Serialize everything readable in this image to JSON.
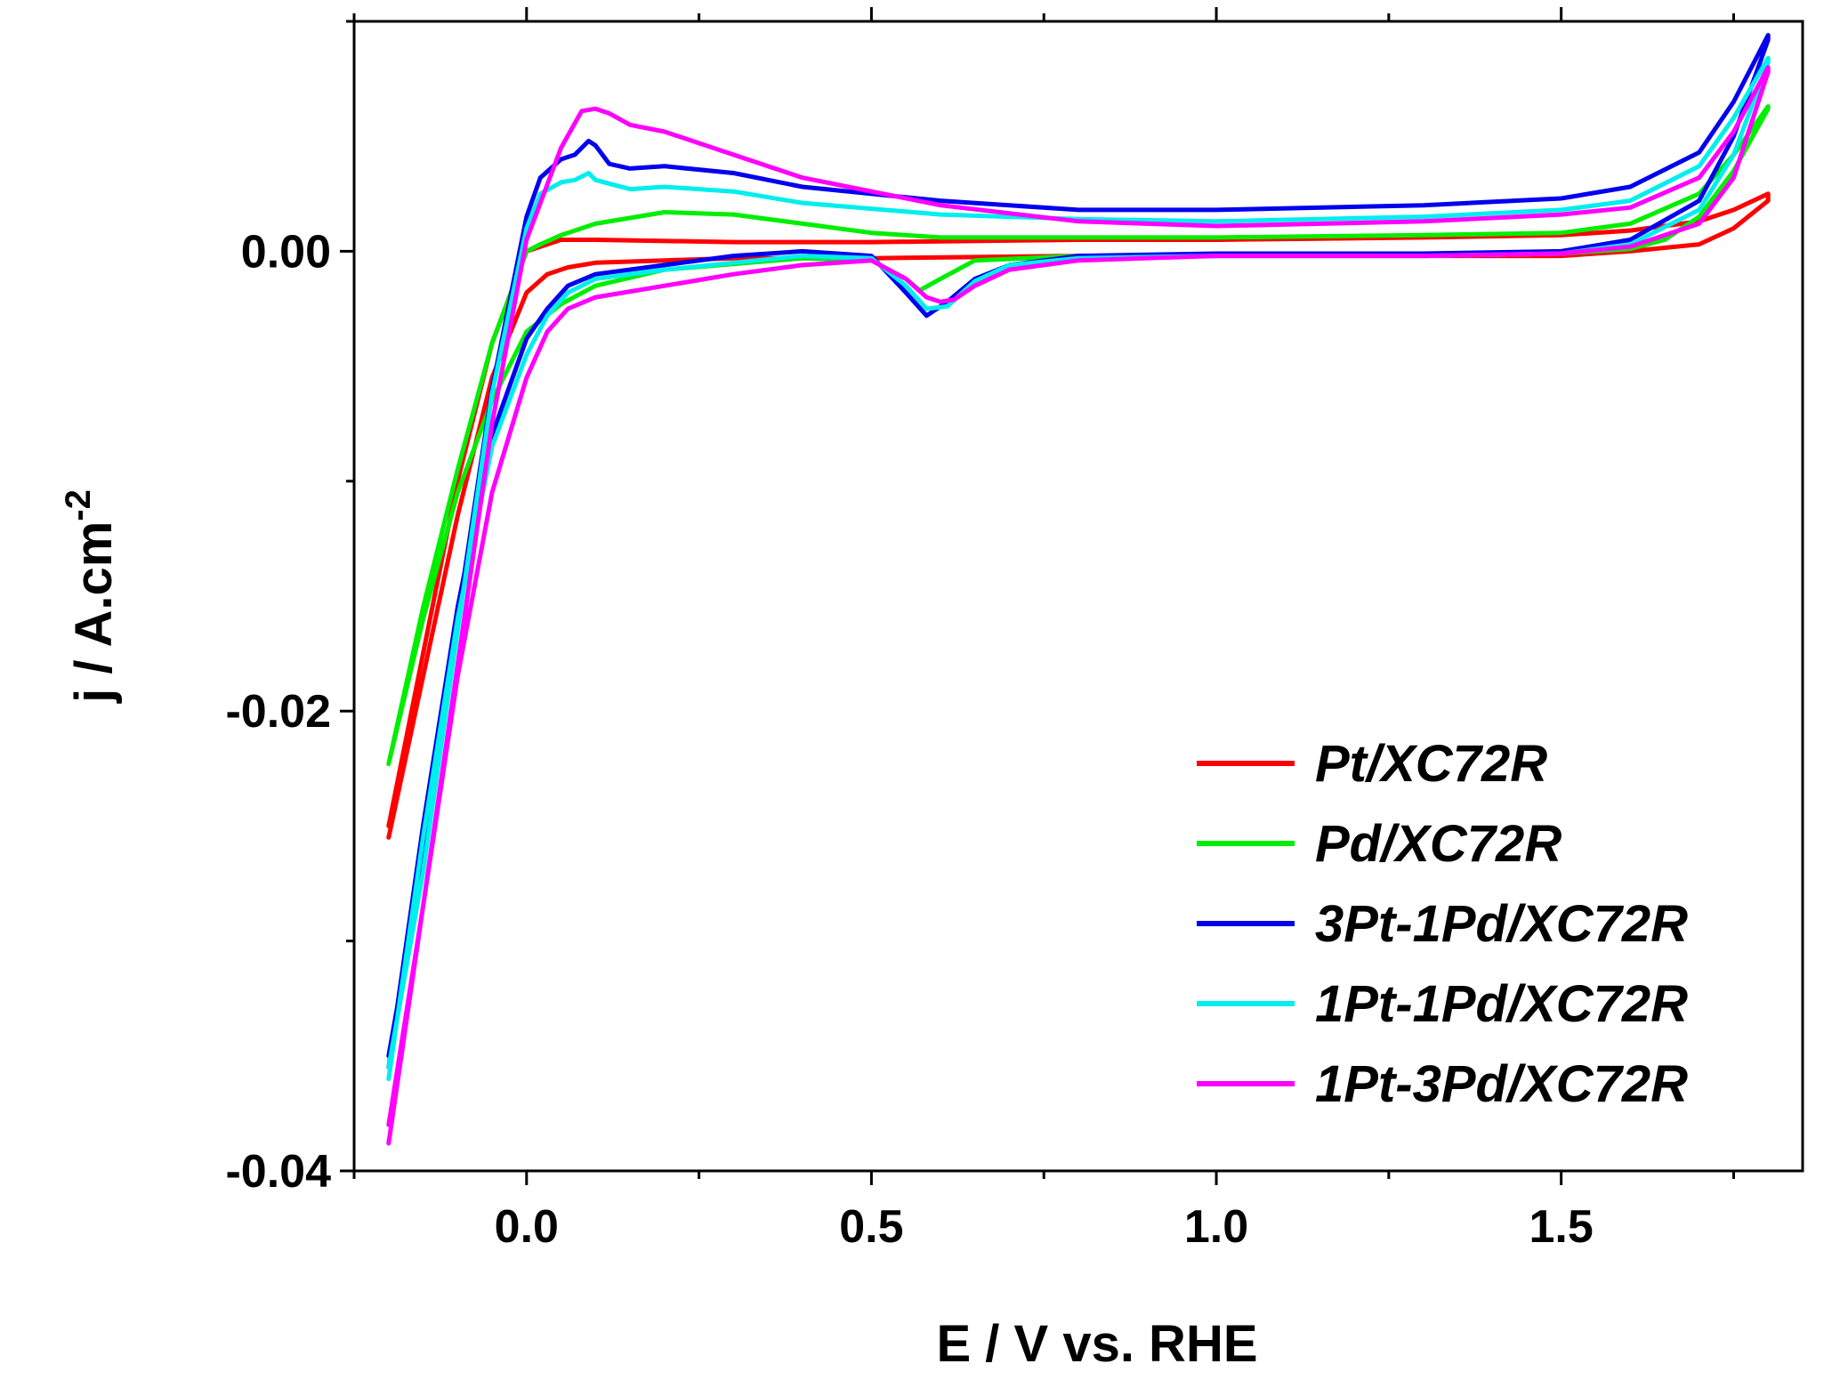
{
  "chart_data": {
    "type": "line",
    "title": "",
    "xlabel": "E / V vs. RHE",
    "ylabel_main": "j / A.cm",
    "ylabel_sup": "-2",
    "xlim": [
      -0.25,
      1.85
    ],
    "ylim": [
      -0.04,
      0.01
    ],
    "xticks": [
      0.0,
      0.5,
      1.0,
      1.5
    ],
    "xtick_labels": [
      "0.0",
      "0.5",
      "1.0",
      "1.5"
    ],
    "yticks": [
      0.0,
      -0.02,
      -0.04
    ],
    "ytick_labels": [
      "0.00",
      "-0.02",
      "-0.04"
    ],
    "legend_position": "bottom-right",
    "series": [
      {
        "name": "Pt/XC72R",
        "color": "#ff0000",
        "x": [
          -0.2,
          -0.15,
          -0.1,
          -0.05,
          0.0,
          0.03,
          0.06,
          0.1,
          0.2,
          0.3,
          0.5,
          0.8,
          1.0,
          1.3,
          1.5,
          1.6,
          1.7,
          1.75,
          1.8,
          1.8,
          1.75,
          1.7,
          1.6,
          1.5,
          1.3,
          1.0,
          0.8,
          0.5,
          0.3,
          0.1,
          0.05,
          0.0,
          -0.05,
          -0.1,
          -0.15,
          -0.2
        ],
        "y": [
          -0.0255,
          -0.0185,
          -0.0115,
          -0.0055,
          -0.0018,
          -0.001,
          -0.0007,
          -0.0005,
          -0.0004,
          -0.0003,
          -0.0003,
          -0.0002,
          -0.0002,
          -0.0002,
          -0.0002,
          0.0,
          0.0003,
          0.001,
          0.0022,
          0.0025,
          0.0018,
          0.0013,
          0.0009,
          0.0007,
          0.0006,
          0.0005,
          0.0005,
          0.0004,
          0.0004,
          0.0005,
          0.0005,
          0.0,
          -0.004,
          -0.01,
          -0.0175,
          -0.025
        ]
      },
      {
        "name": "Pd/XC72R",
        "color": "#00ee00",
        "x": [
          -0.2,
          -0.15,
          -0.1,
          -0.05,
          0.0,
          0.05,
          0.1,
          0.2,
          0.4,
          0.5,
          0.55,
          0.57,
          0.6,
          0.65,
          0.8,
          1.0,
          1.3,
          1.5,
          1.6,
          1.65,
          1.7,
          1.75,
          1.8,
          1.8,
          1.75,
          1.7,
          1.6,
          1.5,
          1.3,
          1.0,
          0.8,
          0.6,
          0.5,
          0.4,
          0.3,
          0.2,
          0.1,
          0.05,
          0.02,
          0.0,
          -0.05,
          -0.1,
          -0.15,
          -0.2
        ],
        "y": [
          -0.0223,
          -0.016,
          -0.0105,
          -0.0065,
          -0.0035,
          -0.0023,
          -0.0015,
          -0.0008,
          -0.0003,
          -0.0004,
          -0.0012,
          -0.0017,
          -0.0012,
          -0.0004,
          -0.0002,
          -0.0002,
          -0.0002,
          -0.0001,
          0.0001,
          0.0005,
          0.0015,
          0.0035,
          0.0062,
          0.0063,
          0.0042,
          0.0025,
          0.0012,
          0.0008,
          0.0007,
          0.0006,
          0.0006,
          0.0006,
          0.0008,
          0.0012,
          0.0016,
          0.0017,
          0.0012,
          0.0007,
          0.0003,
          0.0,
          -0.004,
          -0.0095,
          -0.0155,
          -0.0223
        ]
      },
      {
        "name": "3Pt-1Pd/XC72R",
        "color": "#0000ee",
        "x": [
          -0.2,
          -0.15,
          -0.1,
          -0.05,
          0.0,
          0.03,
          0.06,
          0.1,
          0.2,
          0.3,
          0.4,
          0.5,
          0.55,
          0.58,
          0.61,
          0.65,
          0.7,
          0.8,
          1.0,
          1.3,
          1.5,
          1.6,
          1.7,
          1.75,
          1.8,
          1.8,
          1.75,
          1.7,
          1.6,
          1.5,
          1.3,
          1.0,
          0.8,
          0.6,
          0.4,
          0.3,
          0.2,
          0.15,
          0.12,
          0.1,
          0.09,
          0.07,
          0.05,
          0.02,
          0.0,
          -0.05,
          -0.1,
          -0.15,
          -0.2
        ],
        "y": [
          -0.0355,
          -0.025,
          -0.0155,
          -0.008,
          -0.0038,
          -0.0025,
          -0.0015,
          -0.001,
          -0.0006,
          -0.0002,
          0.0,
          -0.0002,
          -0.0018,
          -0.0028,
          -0.0022,
          -0.0012,
          -0.0006,
          -0.0002,
          -0.0001,
          -0.0001,
          0.0,
          0.0005,
          0.0022,
          0.005,
          0.0092,
          0.0094,
          0.0065,
          0.0043,
          0.0028,
          0.0023,
          0.002,
          0.0018,
          0.0018,
          0.0022,
          0.0028,
          0.0034,
          0.0037,
          0.0036,
          0.0038,
          0.0046,
          0.0048,
          0.0042,
          0.004,
          0.0032,
          0.0015,
          -0.006,
          -0.016,
          -0.0265,
          -0.035
        ]
      },
      {
        "name": "1Pt-1Pd/XC72R",
        "color": "#00eeee",
        "x": [
          -0.2,
          -0.15,
          -0.1,
          -0.05,
          0.0,
          0.03,
          0.06,
          0.1,
          0.2,
          0.3,
          0.4,
          0.5,
          0.55,
          0.58,
          0.61,
          0.65,
          0.7,
          0.8,
          1.0,
          1.3,
          1.5,
          1.6,
          1.7,
          1.75,
          1.8,
          1.8,
          1.75,
          1.7,
          1.6,
          1.5,
          1.3,
          1.0,
          0.8,
          0.6,
          0.4,
          0.3,
          0.2,
          0.15,
          0.1,
          0.09,
          0.07,
          0.05,
          0.02,
          0.0,
          -0.05,
          -0.1,
          -0.15,
          -0.2
        ],
        "y": [
          -0.036,
          -0.0255,
          -0.016,
          -0.0085,
          -0.0045,
          -0.0028,
          -0.0018,
          -0.0012,
          -0.0008,
          -0.0005,
          -0.0002,
          -0.0003,
          -0.0015,
          -0.0025,
          -0.0024,
          -0.0013,
          -0.0006,
          -0.0003,
          -0.0002,
          -0.0002,
          -0.0001,
          0.0003,
          0.0018,
          0.0042,
          0.0082,
          0.0084,
          0.0058,
          0.0037,
          0.0022,
          0.0018,
          0.0015,
          0.0013,
          0.0014,
          0.0016,
          0.0021,
          0.0026,
          0.0028,
          0.0027,
          0.0031,
          0.0034,
          0.0031,
          0.003,
          0.0025,
          0.001,
          -0.0062,
          -0.0165,
          -0.027,
          -0.0355
        ]
      },
      {
        "name": "1Pt-3Pd/XC72R",
        "color": "#ff00ff",
        "x": [
          -0.2,
          -0.15,
          -0.1,
          -0.05,
          0.0,
          0.03,
          0.06,
          0.1,
          0.2,
          0.3,
          0.4,
          0.5,
          0.55,
          0.58,
          0.6,
          0.62,
          0.65,
          0.7,
          0.8,
          1.0,
          1.3,
          1.5,
          1.6,
          1.7,
          1.75,
          1.8,
          1.8,
          1.75,
          1.7,
          1.6,
          1.5,
          1.3,
          1.0,
          0.8,
          0.6,
          0.4,
          0.3,
          0.2,
          0.15,
          0.12,
          0.1,
          0.08,
          0.05,
          0.0,
          -0.05,
          -0.1,
          -0.15,
          -0.2
        ],
        "y": [
          -0.0388,
          -0.0285,
          -0.0185,
          -0.0105,
          -0.0055,
          -0.0035,
          -0.0025,
          -0.002,
          -0.0015,
          -0.001,
          -0.0006,
          -0.0004,
          -0.0012,
          -0.002,
          -0.0022,
          -0.0021,
          -0.0015,
          -0.0008,
          -0.0004,
          -0.0002,
          -0.0002,
          -0.0001,
          0.0002,
          0.0012,
          0.0032,
          0.0078,
          0.008,
          0.0052,
          0.0032,
          0.0019,
          0.0016,
          0.0013,
          0.0011,
          0.0013,
          0.002,
          0.0032,
          0.0042,
          0.0052,
          0.0055,
          0.006,
          0.0062,
          0.0061,
          0.0045,
          0.0005,
          -0.0075,
          -0.018,
          -0.0285,
          -0.038
        ]
      }
    ]
  }
}
